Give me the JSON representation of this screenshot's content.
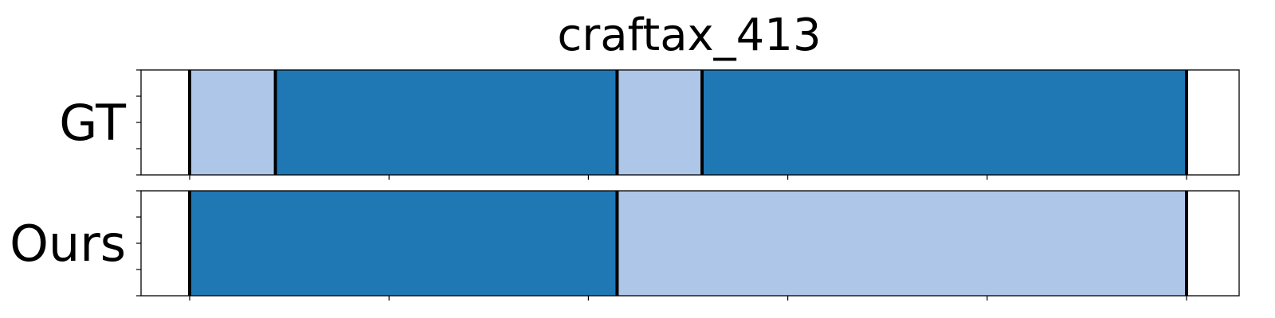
{
  "chart_data": {
    "type": "segmentation-timeline",
    "title": "craftax_413",
    "x_range": [
      0,
      262
    ],
    "tick_values": [
      0,
      50,
      100,
      150,
      200,
      250
    ],
    "y_ticks_per_row": 5,
    "colors": {
      "light": "#aec7e8",
      "dark": "#1f77b4",
      "boundary": "#000000"
    },
    "rows": [
      {
        "name": "GT",
        "segments": [
          {
            "start": 0,
            "end": 21.5,
            "class": "light"
          },
          {
            "start": 21.5,
            "end": 107.2,
            "class": "dark"
          },
          {
            "start": 107.2,
            "end": 128.5,
            "class": "light"
          },
          {
            "start": 128.5,
            "end": 250,
            "class": "dark"
          }
        ]
      },
      {
        "name": "Ours",
        "segments": [
          {
            "start": 0,
            "end": 107.2,
            "class": "dark"
          },
          {
            "start": 107.2,
            "end": 250,
            "class": "light"
          }
        ]
      }
    ]
  }
}
